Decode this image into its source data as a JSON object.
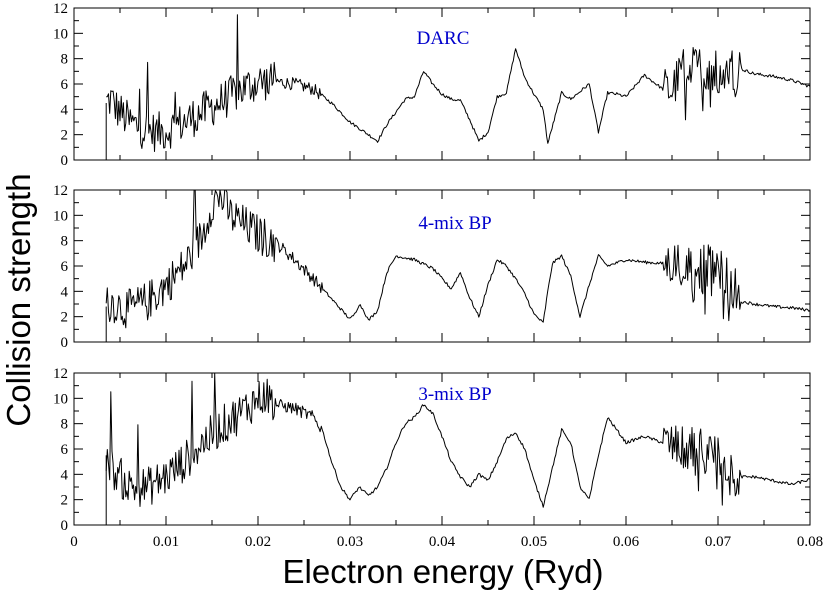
{
  "chart_data": {
    "type": "line",
    "xlabel": "Electron energy (Ryd)",
    "ylabel": "Collision strength",
    "xlim": [
      0,
      0.08
    ],
    "xticks": [
      0,
      0.01,
      0.02,
      0.03,
      0.04,
      0.05,
      0.06,
      0.07,
      0.08
    ],
    "xtick_labels": [
      "0",
      "0.01",
      "0.02",
      "0.03",
      "0.04",
      "0.05",
      "0.06",
      "0.07",
      "0.08"
    ],
    "panels": [
      {
        "label": "DARC",
        "label_color": "#0000cc",
        "ylim": [
          0,
          12
        ],
        "yticks": [
          0,
          2,
          4,
          6,
          8,
          10,
          12
        ],
        "series": [
          {
            "name": "DARC",
            "x": [
              0.0035,
              0.004,
              0.0045,
              0.005,
              0.006,
              0.007,
              0.008,
              0.009,
              0.01,
              0.011,
              0.012,
              0.014,
              0.016,
              0.018,
              0.02,
              0.022,
              0.024,
              0.026,
              0.028,
              0.03,
              0.031,
              0.032,
              0.033,
              0.034,
              0.035,
              0.036,
              0.037,
              0.038,
              0.039,
              0.04,
              0.041,
              0.042,
              0.043,
              0.044,
              0.045,
              0.046,
              0.047,
              0.048,
              0.049,
              0.05,
              0.051,
              0.0515,
              0.053,
              0.054,
              0.056,
              0.057,
              0.058,
              0.059,
              0.06,
              0.062,
              0.064,
              0.065,
              0.066,
              0.068,
              0.07,
              0.072,
              0.074,
              0.076,
              0.078,
              0.08
            ],
            "y": [
              4.5,
              4.8,
              4.2,
              3.8,
              3.0,
              2.6,
              2.3,
              2.2,
              2.3,
              2.7,
              3.0,
              3.8,
              4.6,
              5.5,
              6.2,
              6.2,
              6.0,
              5.6,
              4.5,
              3.0,
              2.5,
              2.0,
              1.5,
              2.8,
              3.8,
              4.8,
              5.0,
              7.0,
              6.0,
              5.2,
              4.8,
              4.7,
              3.2,
              1.5,
              2.2,
              5.0,
              5.3,
              8.8,
              6.5,
              5.2,
              4.0,
              1.3,
              5.3,
              4.8,
              6.0,
              2.2,
              5.3,
              5.2,
              5.0,
              6.7,
              5.6,
              5.5,
              7.0,
              7.3,
              7.0,
              7.3,
              6.8,
              6.6,
              6.3,
              5.8
            ]
          }
        ]
      },
      {
        "label": "4-mix BP",
        "label_color": "#0000cc",
        "ylim": [
          0,
          12
        ],
        "yticks": [
          0,
          2,
          4,
          6,
          8,
          10,
          12
        ],
        "series": [
          {
            "name": "4-mix BP",
            "x": [
              0.0035,
              0.004,
              0.005,
              0.006,
              0.008,
              0.01,
              0.012,
              0.014,
              0.015,
              0.016,
              0.017,
              0.018,
              0.02,
              0.022,
              0.024,
              0.026,
              0.028,
              0.03,
              0.0305,
              0.031,
              0.0315,
              0.032,
              0.033,
              0.034,
              0.035,
              0.037,
              0.039,
              0.041,
              0.042,
              0.043,
              0.044,
              0.045,
              0.046,
              0.047,
              0.048,
              0.049,
              0.05,
              0.051,
              0.0515,
              0.052,
              0.053,
              0.054,
              0.055,
              0.056,
              0.057,
              0.058,
              0.06,
              0.062,
              0.064,
              0.066,
              0.068,
              0.07,
              0.072,
              0.0725,
              0.074,
              0.076,
              0.078,
              0.08
            ],
            "y": [
              2.8,
              3.2,
              2.8,
              2.6,
              3.2,
              4.5,
              6.0,
              8.5,
              11.0,
              11.5,
              10.0,
              9.5,
              8.5,
              7.8,
              6.5,
              5.0,
              3.4,
              1.8,
              2.2,
              3.0,
              2.5,
              1.7,
              2.5,
              5.5,
              6.8,
              6.5,
              5.8,
              4.2,
              5.5,
              3.5,
              2.0,
              4.5,
              6.5,
              6.0,
              5.0,
              3.8,
              2.2,
              1.5,
              4.0,
              6.2,
              6.8,
              5.2,
              2.0,
              4.5,
              6.8,
              6.0,
              6.5,
              6.3,
              6.2,
              6.3,
              6.0,
              5.8,
              4.0,
              3.2,
              3.0,
              2.8,
              2.7,
              2.5
            ]
          }
        ]
      },
      {
        "label": "3-mix BP",
        "label_color": "#0000cc",
        "ylim": [
          0,
          12
        ],
        "yticks": [
          0,
          2,
          4,
          6,
          8,
          10,
          12
        ],
        "series": [
          {
            "name": "3-mix BP",
            "x": [
              0.0035,
              0.004,
              0.005,
              0.006,
              0.008,
              0.01,
              0.012,
              0.014,
              0.016,
              0.018,
              0.02,
              0.021,
              0.022,
              0.024,
              0.026,
              0.027,
              0.028,
              0.029,
              0.03,
              0.0305,
              0.031,
              0.032,
              0.033,
              0.034,
              0.035,
              0.036,
              0.037,
              0.038,
              0.039,
              0.04,
              0.041,
              0.042,
              0.043,
              0.044,
              0.045,
              0.046,
              0.047,
              0.048,
              0.049,
              0.05,
              0.051,
              0.052,
              0.053,
              0.054,
              0.055,
              0.056,
              0.057,
              0.058,
              0.06,
              0.062,
              0.064,
              0.066,
              0.068,
              0.07,
              0.072,
              0.0725,
              0.074,
              0.076,
              0.078,
              0.08
            ],
            "y": [
              5.5,
              4.5,
              3.8,
              3.0,
              3.0,
              3.8,
              5.0,
              6.5,
              7.8,
              8.8,
              10.0,
              10.3,
              9.5,
              9.2,
              8.5,
              7.5,
              5.0,
              3.0,
              2.0,
              2.5,
              3.0,
              2.3,
              3.0,
              4.5,
              6.5,
              8.0,
              8.5,
              9.5,
              8.8,
              7.0,
              5.0,
              3.8,
              3.0,
              4.0,
              3.5,
              5.0,
              6.8,
              7.3,
              6.0,
              3.5,
              1.5,
              4.5,
              7.5,
              6.5,
              3.0,
              2.0,
              5.5,
              8.5,
              6.5,
              7.0,
              6.5,
              6.0,
              6.0,
              5.5,
              4.0,
              3.8,
              3.8,
              3.5,
              3.2,
              3.6
            ]
          }
        ]
      }
    ]
  }
}
